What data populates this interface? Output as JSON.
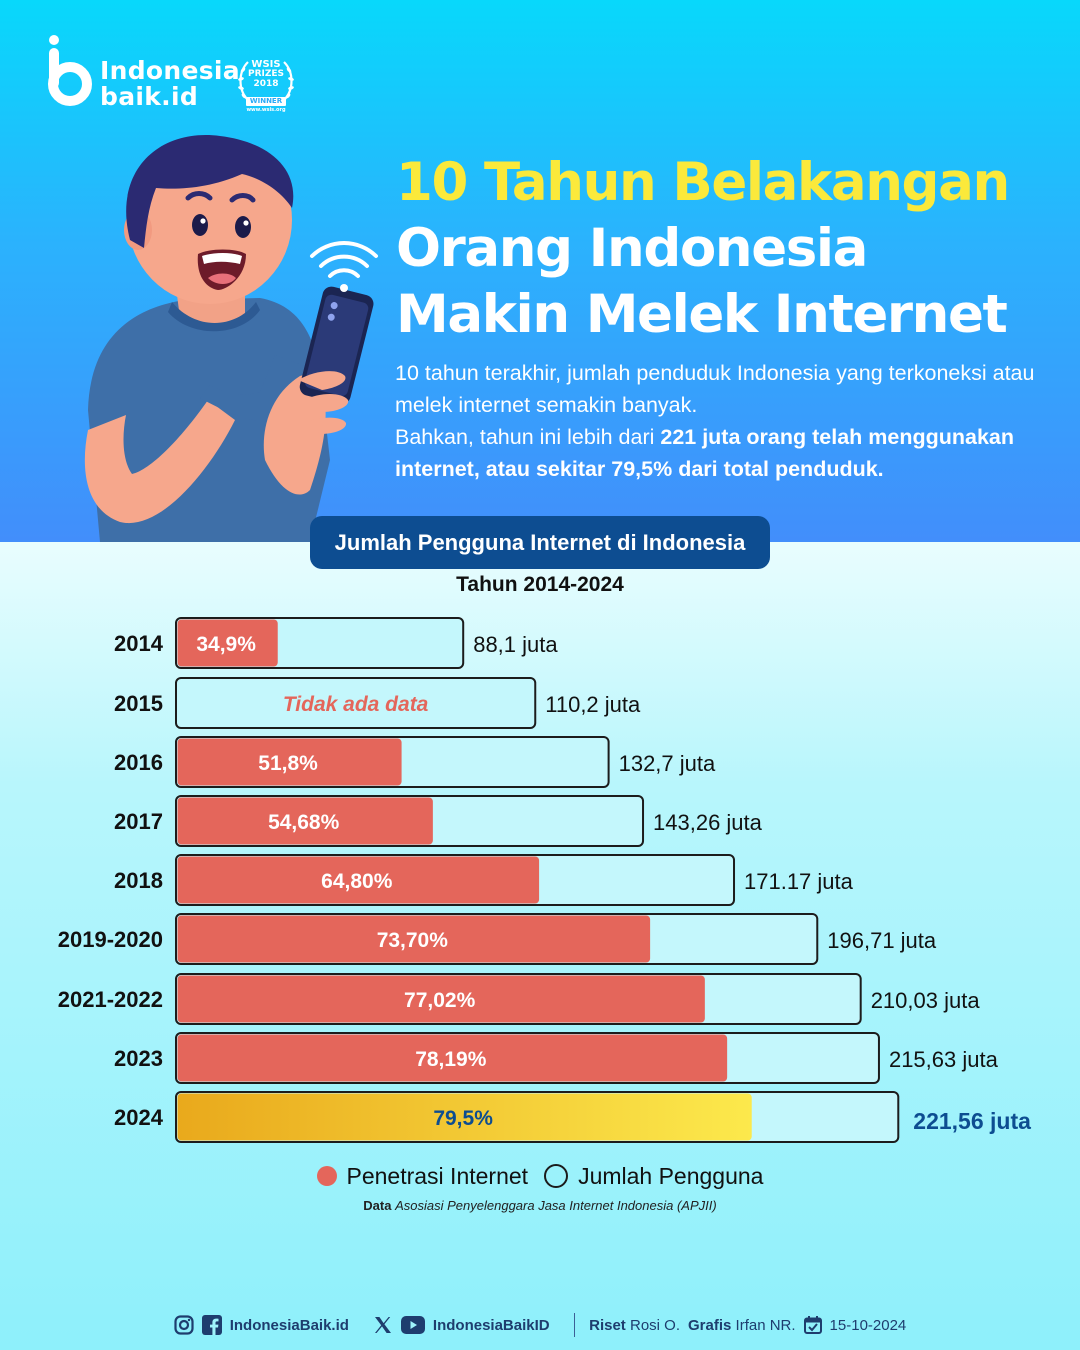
{
  "brand": {
    "line1": "Indonesia",
    "line2": "baik.id"
  },
  "award": {
    "line1": "WSIS",
    "line2": "PRIZES",
    "line3": "2018",
    "line4": "WINNER",
    "line5": "www.wsis.org"
  },
  "headline": {
    "line1": "10 Tahun Belakangan",
    "line2": "Orang Indonesia",
    "line3": "Makin Melek Internet"
  },
  "intro": {
    "p1": "10 tahun terakhir, jumlah penduduk Indonesia yang terkoneksi atau melek internet semakin banyak.",
    "p2_plain": "Bahkan, tahun ini lebih dari ",
    "p2_bold": "221 juta orang telah menggunakan internet, atau sekitar 79,5% dari total penduduk."
  },
  "chart_heading": "Jumlah Pengguna Internet di Indonesia",
  "chart_subheading": "Tahun 2014-2024",
  "colors": {
    "penetration": "#e4665b",
    "highlight_start": "#e9a91c",
    "highlight_end": "#fce94c",
    "bar_outline": "#1c1c1c",
    "bar_bg": "#c4f7fc",
    "no_data_text": "#e4665b",
    "highlight_users": "#0d4d91"
  },
  "chart_data": {
    "type": "bar",
    "orientation": "horizontal",
    "categories": [
      "2014",
      "2015",
      "2016",
      "2017",
      "2018",
      "2019-2020",
      "2021-2022",
      "2023",
      "2024"
    ],
    "series": [
      {
        "name": "Jumlah Pengguna",
        "unit": "juta",
        "values": [
          88.1,
          110.2,
          132.7,
          143.26,
          171.17,
          196.71,
          210.03,
          215.63,
          221.56
        ],
        "labels": [
          "88,1 juta",
          "110,2 juta",
          "132,7 juta",
          "143,26 juta",
          "171.17 juta",
          "196,71 juta",
          "210,03 juta",
          "215,63 juta",
          "221,56 juta"
        ]
      },
      {
        "name": "Penetrasi Internet",
        "unit": "%",
        "values": [
          34.9,
          null,
          51.8,
          54.68,
          64.8,
          73.7,
          77.02,
          78.19,
          79.5
        ],
        "labels": [
          "34,9%",
          "Tidak ada data",
          "51,8%",
          "54,68%",
          "64,80%",
          "73,70%",
          "77,02%",
          "78,19%",
          "79,5%"
        ]
      }
    ],
    "highlight_category": "2024"
  },
  "legend": {
    "penetration": "Penetrasi Internet",
    "users": "Jumlah Pengguna"
  },
  "source": {
    "label": "Data",
    "text": "Asosiasi Penyelenggara Jasa Internet Indonesia (APJII)"
  },
  "footer": {
    "handle1": "IndonesiaBaik.id",
    "handle2": "IndonesiaBaikID",
    "riset_label": "Riset",
    "riset_name": "Rosi O.",
    "grafis_label": "Grafis",
    "grafis_name": "Irfan NR.",
    "date": "15-10-2024",
    "icons": [
      "instagram-icon",
      "facebook-icon",
      "x-icon",
      "youtube-icon",
      "calendar-icon"
    ]
  }
}
